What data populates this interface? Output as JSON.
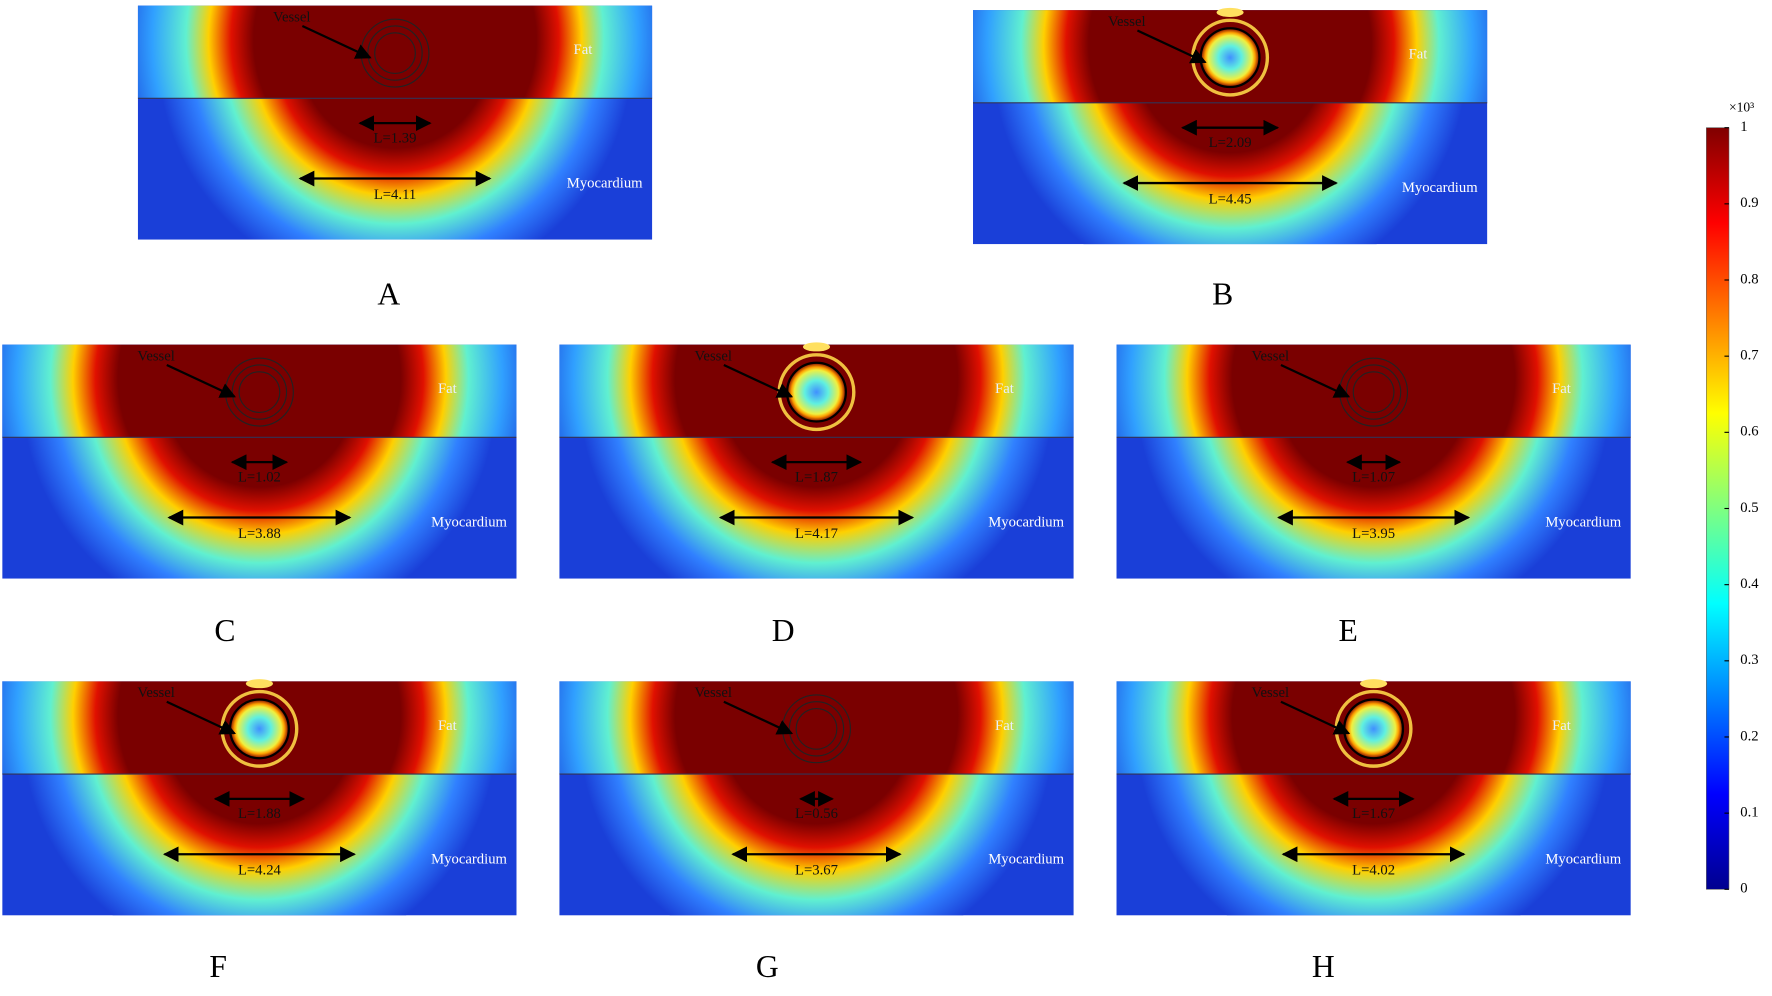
{
  "panels": [
    {
      "label": "A",
      "vessel": "Vessel",
      "fat": "Fat",
      "myocardium": "Myocardium",
      "inner_length": "L=1.39",
      "outer_length": "L=4.11",
      "catheter": false
    },
    {
      "label": "B",
      "vessel": "Vessel",
      "fat": "Fat",
      "myocardium": "Myocardium",
      "inner_length": "L=2.09",
      "outer_length": "L=4.45",
      "catheter": true
    },
    {
      "label": "C",
      "vessel": "Vessel",
      "fat": "Fat",
      "myocardium": "Myocardium",
      "inner_length": "L=1.02",
      "outer_length": "L=3.88",
      "catheter": false
    },
    {
      "label": "D",
      "vessel": "Vessel",
      "fat": "Fat",
      "myocardium": "Myocardium",
      "inner_length": "L=1.87",
      "outer_length": "L=4.17",
      "catheter": true
    },
    {
      "label": "E",
      "vessel": "Vessel",
      "fat": "Fat",
      "myocardium": "Myocardium",
      "inner_length": "L=1.07",
      "outer_length": "L=3.95",
      "catheter": false
    },
    {
      "label": "F",
      "vessel": "Vessel",
      "fat": "Fat",
      "myocardium": "Myocardium",
      "inner_length": "L=1.88",
      "outer_length": "L=4.24",
      "catheter": true
    },
    {
      "label": "G",
      "vessel": "Vessel",
      "fat": "Fat",
      "myocardium": "Myocardium",
      "inner_length": "L=0.56",
      "outer_length": "L=3.67",
      "catheter": false
    },
    {
      "label": "H",
      "vessel": "Vessel",
      "fat": "Fat",
      "myocardium": "Myocardium",
      "inner_length": "L=1.67",
      "outer_length": "L=4.02",
      "catheter": true
    }
  ],
  "colorbar": {
    "multiplier": "×10³",
    "lim": [
      0,
      1
    ],
    "ticks": [
      0,
      0.1,
      0.2,
      0.3,
      0.4,
      0.5,
      0.6,
      0.7,
      0.8,
      0.9,
      1
    ],
    "colormap": "jet"
  }
}
